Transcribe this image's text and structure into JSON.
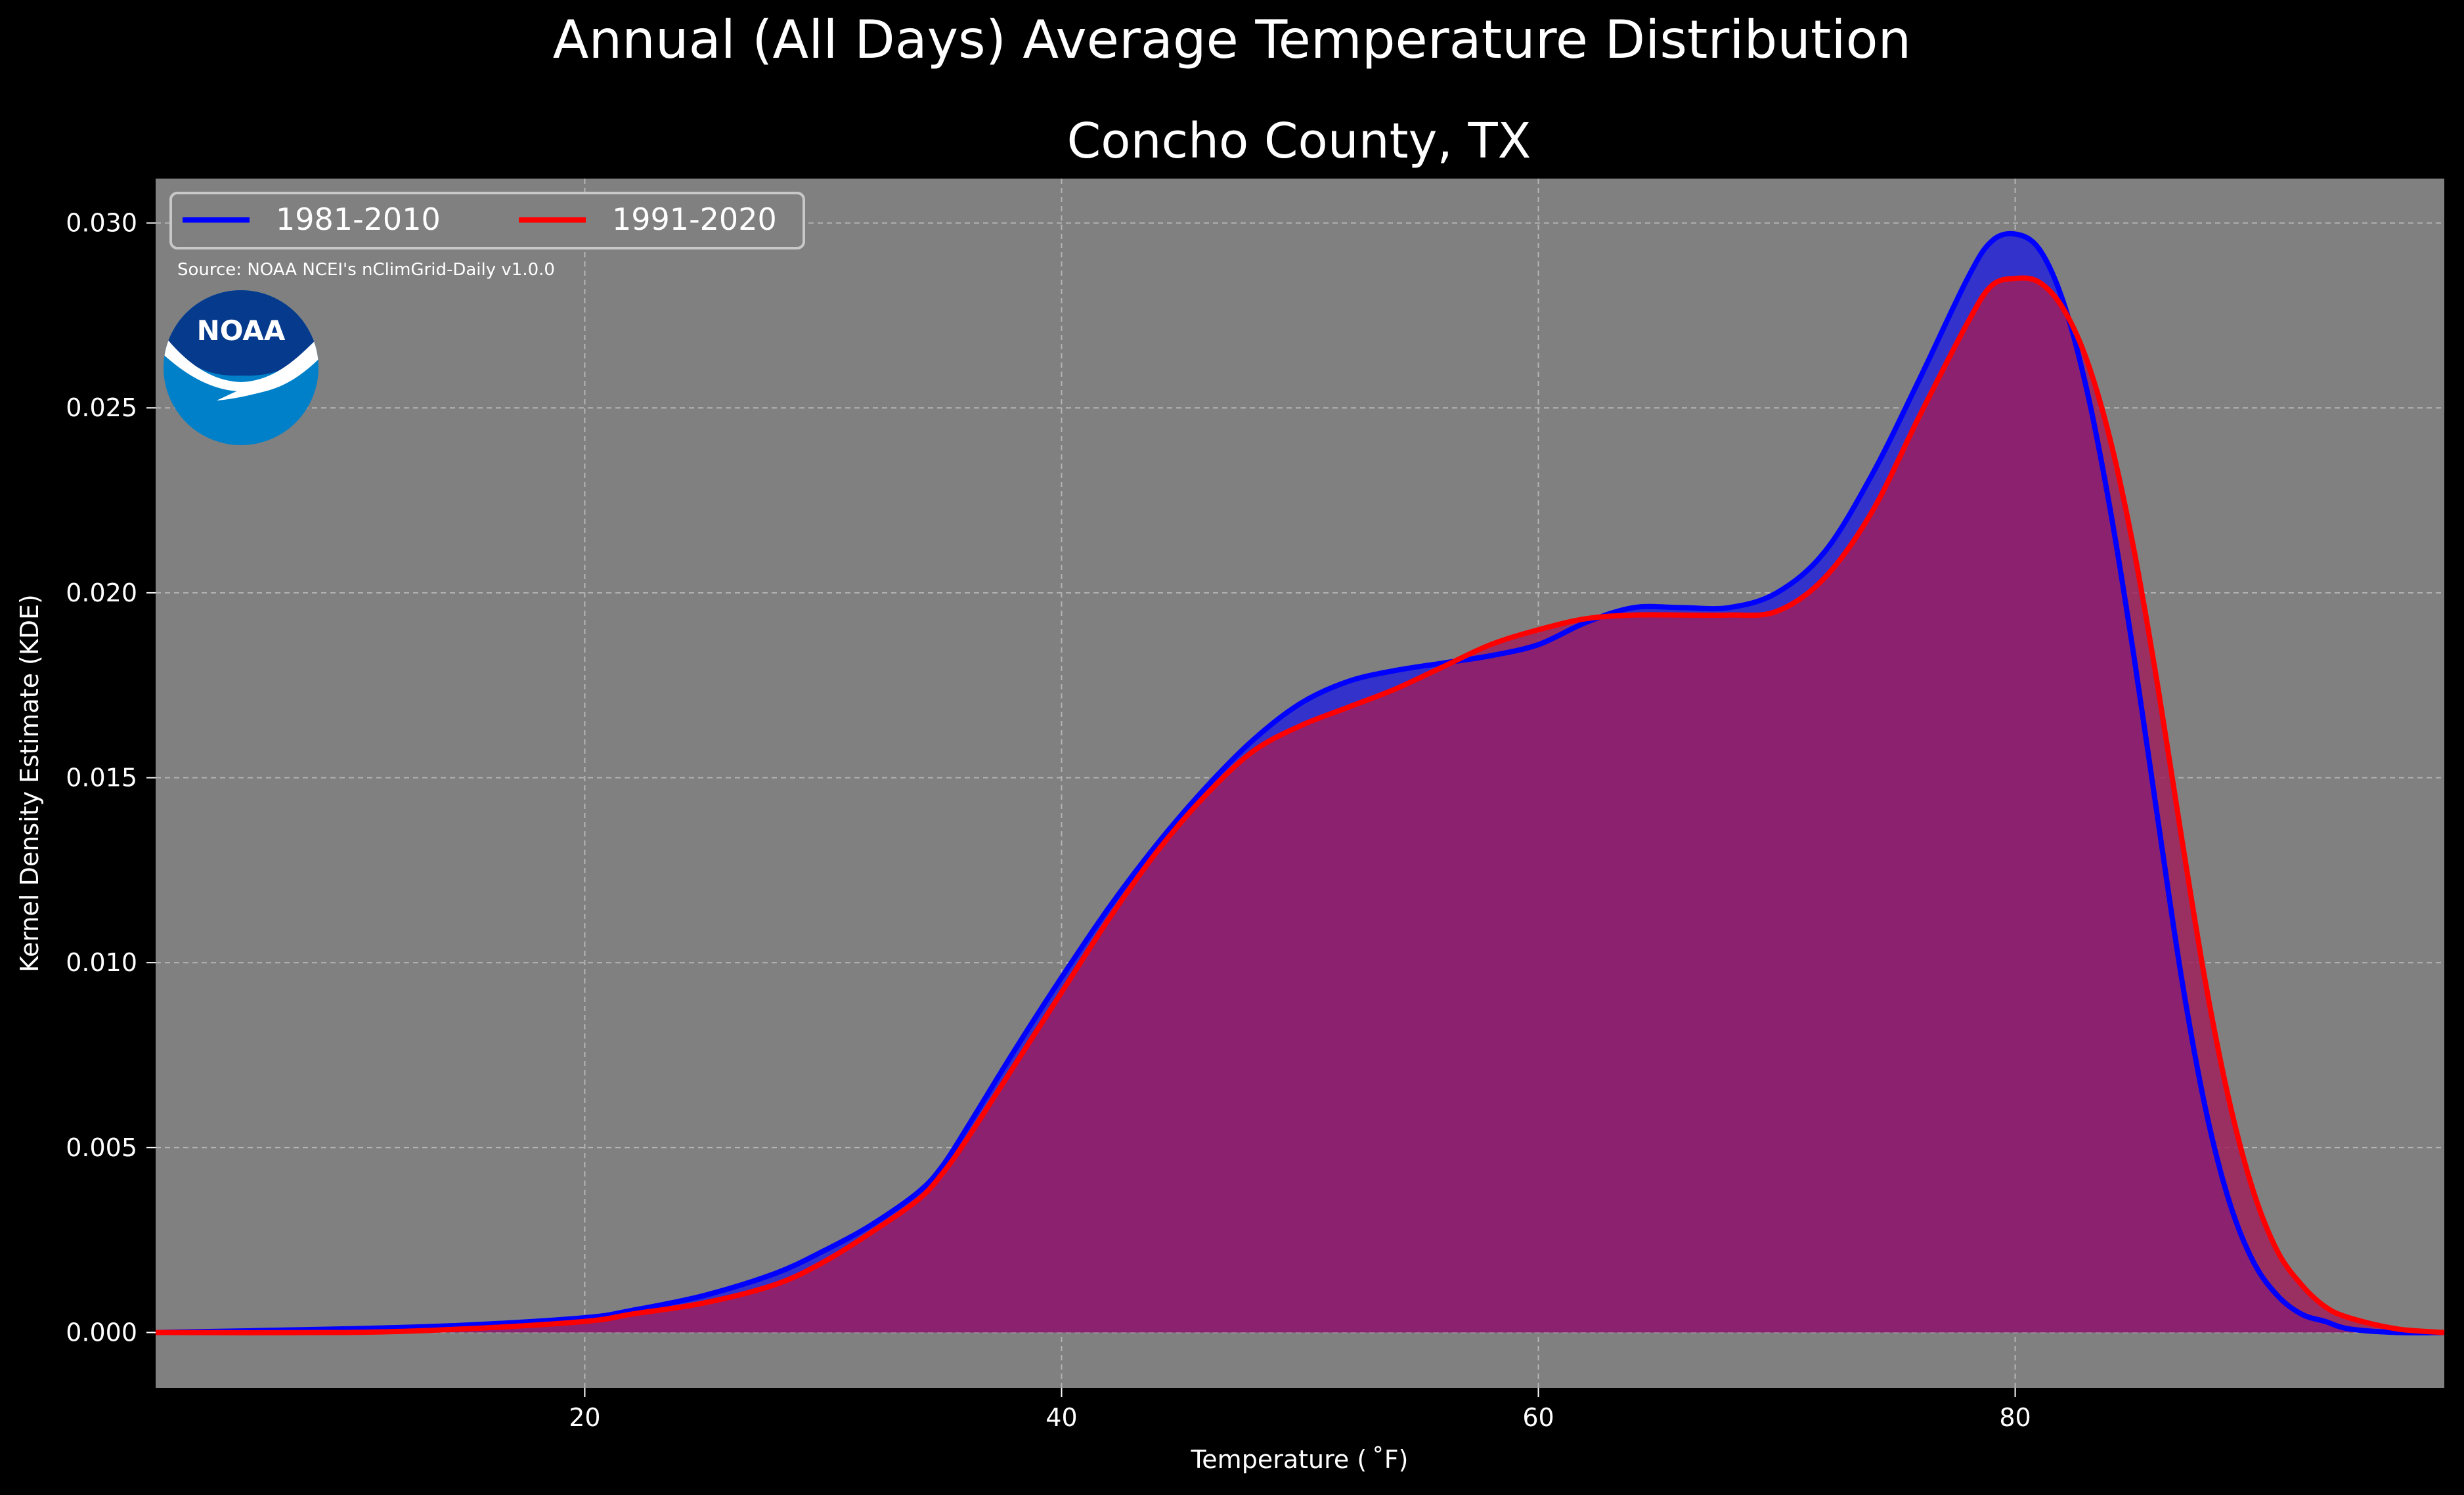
{
  "chart_data": {
    "type": "area",
    "title": "Annual (All Days) Average Temperature Distribution",
    "subtitle": "Concho County, TX",
    "xlabel": "Temperature ($^\\circ$F)",
    "ylabel": "Kernel Density Estimate (KDE)",
    "xlim": [
      2,
      98
    ],
    "ylim": [
      -0.0015,
      0.0312
    ],
    "x_ticks": [
      20,
      40,
      60,
      80
    ],
    "x_tick_labels": [
      "20",
      "40",
      "60",
      "80"
    ],
    "y_ticks": [
      0.0,
      0.005,
      0.01,
      0.015,
      0.02,
      0.025,
      0.03
    ],
    "y_tick_labels": [
      "0.000",
      "0.005",
      "0.010",
      "0.015",
      "0.020",
      "0.025",
      "0.030"
    ],
    "grid": true,
    "legend": {
      "placement": "top-left",
      "columns": 2
    },
    "source_note": "Source: NOAA NCEI's nClimGrid-Daily v1.0.0",
    "logo_text": "NOAA",
    "series": [
      {
        "name": "1981-2010",
        "color": "#0000ff",
        "x": [
          2,
          10,
          15,
          20,
          22,
          25,
          28,
          30,
          32,
          34,
          35,
          36,
          38,
          40,
          42,
          44,
          46,
          48,
          50,
          52,
          54,
          56,
          58,
          60,
          62,
          64,
          66,
          68,
          70,
          72,
          74,
          76,
          78,
          79,
          80,
          81,
          82,
          83,
          84,
          85,
          86,
          87,
          88,
          89,
          90,
          91,
          92,
          93,
          94,
          96,
          98
        ],
        "y": [
          0.0,
          0.0001,
          0.0002,
          0.0004,
          0.0006,
          0.001,
          0.0016,
          0.0022,
          0.0029,
          0.0038,
          0.0045,
          0.0055,
          0.0076,
          0.0096,
          0.0115,
          0.0132,
          0.0147,
          0.016,
          0.017,
          0.0176,
          0.0179,
          0.0181,
          0.0183,
          0.0186,
          0.0192,
          0.0196,
          0.0196,
          0.0196,
          0.02,
          0.0211,
          0.0232,
          0.0258,
          0.0285,
          0.0295,
          0.0297,
          0.0293,
          0.0279,
          0.0255,
          0.0222,
          0.0182,
          0.0138,
          0.0095,
          0.006,
          0.0035,
          0.0019,
          0.001,
          0.0005,
          0.0003,
          0.0001,
          0.0,
          0.0
        ]
      },
      {
        "name": "1991-2020",
        "color": "#ff0000",
        "x": [
          2,
          10,
          15,
          20,
          22,
          25,
          28,
          30,
          32,
          34,
          35,
          36,
          38,
          40,
          42,
          44,
          46,
          48,
          50,
          52,
          54,
          56,
          58,
          60,
          62,
          64,
          66,
          68,
          70,
          72,
          74,
          76,
          78,
          79,
          80,
          81,
          82,
          83,
          84,
          85,
          86,
          87,
          88,
          89,
          90,
          91,
          92,
          93,
          94,
          96,
          98
        ],
        "y": [
          0.0,
          0.0,
          0.0001,
          0.0003,
          0.0005,
          0.0008,
          0.0013,
          0.0019,
          0.0027,
          0.0036,
          0.0043,
          0.0052,
          0.0072,
          0.0092,
          0.0112,
          0.013,
          0.0145,
          0.0157,
          0.0164,
          0.0169,
          0.0174,
          0.018,
          0.0186,
          0.019,
          0.0193,
          0.0194,
          0.0194,
          0.0194,
          0.0195,
          0.0204,
          0.0222,
          0.0248,
          0.0273,
          0.0283,
          0.0285,
          0.0284,
          0.0277,
          0.0263,
          0.0241,
          0.0211,
          0.0174,
          0.0133,
          0.0094,
          0.0062,
          0.0038,
          0.0022,
          0.0013,
          0.0007,
          0.0004,
          0.0001,
          0.0
        ]
      }
    ]
  },
  "colors": {
    "figure_background": "#000000",
    "plot_background": "#808080",
    "fill_1981_2010": "#3333cc",
    "fill_1991_2020": "#a01e5a",
    "noaa_logo_dark": "#063a8c",
    "noaa_logo_light": "#0080c8"
  }
}
